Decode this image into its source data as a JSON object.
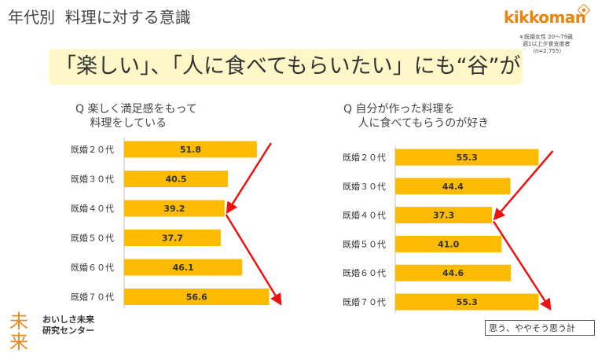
{
  "page_title": "年代別  料理に対する意識",
  "logo_text": "kikkoman",
  "survey_note": [
    "＊既婚女性 20〜79歳",
    "週1以上夕食支度者",
    "（n=2,755）"
  ],
  "headline": "「楽しい」、「人に食べてもらいたい」にも“谷”が",
  "legend_note": "思う、ややそう思う計",
  "center_logo": {
    "mark": "未来",
    "line1": "おいしさ未来",
    "line2": "研究センター"
  },
  "colors": {
    "bar": "#fcbb00",
    "arrow": "#ee1111",
    "headline_bg": "#fdf6c7",
    "logo": "#e8840c"
  },
  "chart_data": [
    {
      "type": "bar",
      "orientation": "horizontal",
      "question_lines": [
        "Q  楽しく満足感をもって",
        "　  料理をしている"
      ],
      "categories": [
        "既婚２０代",
        "既婚３０代",
        "既婚４０代",
        "既婚５０代",
        "既婚６０代",
        "既婚７０代"
      ],
      "values": [
        51.8,
        40.5,
        39.2,
        37.7,
        46.1,
        56.6
      ],
      "xlim": [
        0,
        100
      ],
      "arrows": [
        {
          "from": "既婚２０代",
          "to": "既婚４０代"
        },
        {
          "from": "既婚４０代",
          "to": "既婚７０代"
        }
      ]
    },
    {
      "type": "bar",
      "orientation": "horizontal",
      "question_lines": [
        "Q  自分が作った料理を",
        "　  人に食べてもらうのが好き"
      ],
      "categories": [
        "既婚２０代",
        "既婚３０代",
        "既婚４０代",
        "既婚５０代",
        "既婚６０代",
        "既婚７０代"
      ],
      "values": [
        55.3,
        44.4,
        37.3,
        41.0,
        44.6,
        55.3
      ],
      "xlim": [
        0,
        100
      ],
      "arrows": [
        {
          "from": "既婚２０代",
          "to": "既婚４０代"
        },
        {
          "from": "既婚４０代",
          "to": "既婚７０代"
        }
      ]
    }
  ]
}
